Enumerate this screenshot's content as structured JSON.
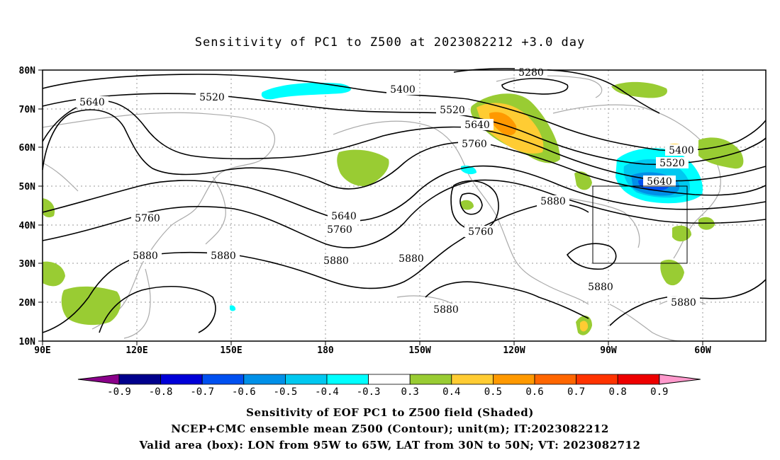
{
  "title": "Sensitivity of PC1 to Z500 at 2023082212 +3.0 day",
  "lat_ticks": [
    "80N",
    "70N",
    "60N",
    "50N",
    "40N",
    "30N",
    "20N",
    "10N"
  ],
  "lon_ticks": [
    "90E",
    "120E",
    "150E",
    "180",
    "150W",
    "120W",
    "90W",
    "60W"
  ],
  "contour_labels": [
    "5280",
    "5400",
    "5520",
    "5640",
    "5760",
    "5880"
  ],
  "colorbar": {
    "labels": [
      "-0.9",
      "-0.8",
      "-0.7",
      "-0.6",
      "-0.5",
      "-0.4",
      "-0.3",
      "0.3",
      "0.4",
      "0.5",
      "0.6",
      "0.7",
      "0.8",
      "0.9"
    ],
    "colors": [
      "#8a008a",
      "#00008c",
      "#0000d8",
      "#0050f0",
      "#0090e8",
      "#00c8f0",
      "#00ffff",
      "#ffffff",
      "#99cc33",
      "#ffcc33",
      "#ff9900",
      "#ff6600",
      "#ff3300",
      "#ee0000",
      "#ff99cc"
    ]
  },
  "valid_box": {
    "lon_west": 95,
    "lon_east": 65,
    "lat_south": 30,
    "lat_north": 50
  },
  "captions": {
    "line1": "Sensitivity of EOF PC1 to Z500 field (Shaded)",
    "line2": "NCEP+CMC ensemble mean Z500 (Contour); unit(m); IT:2023082212",
    "line3": "Valid area (box): LON from 95W to 65W, LAT from 30N to 50N; VT: 2023082712"
  }
}
